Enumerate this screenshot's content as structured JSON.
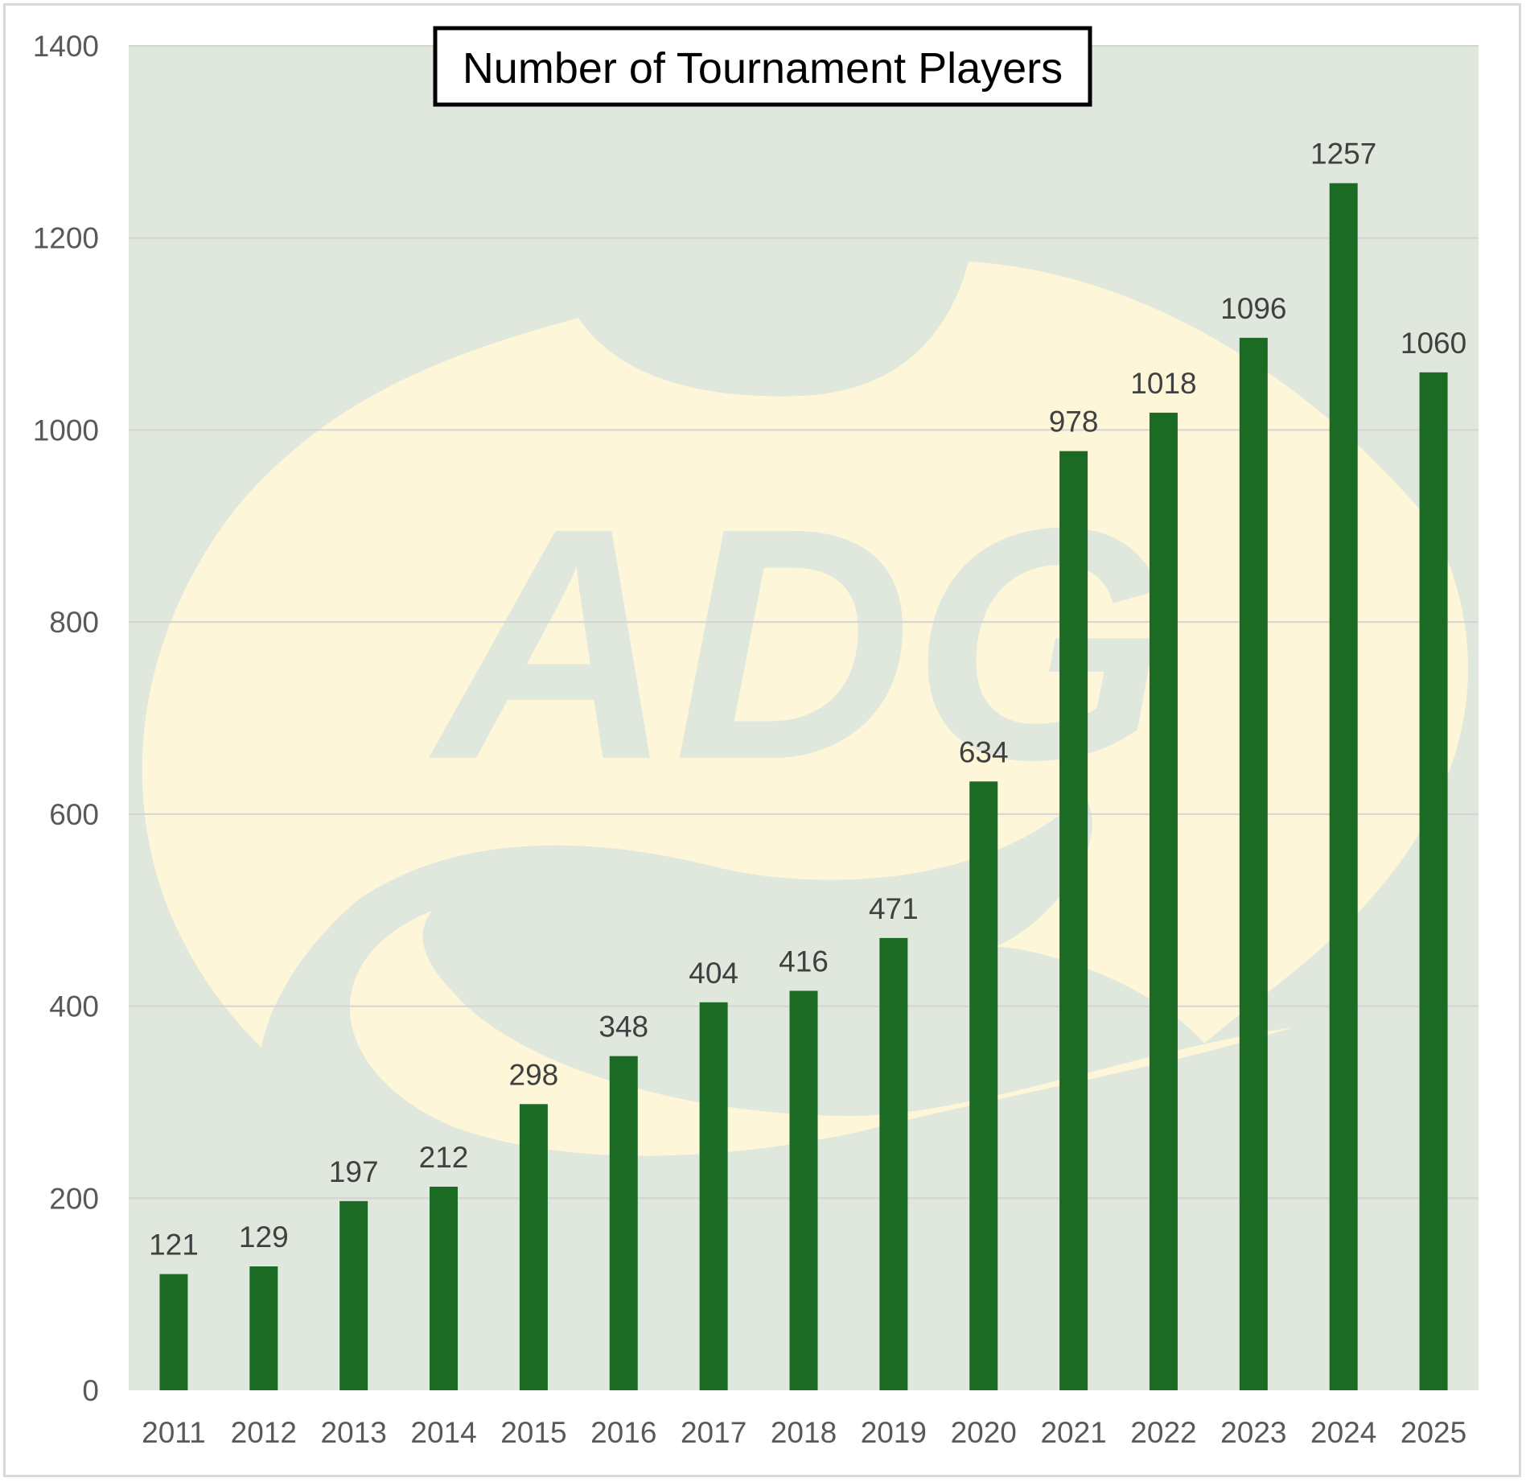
{
  "chart_data": {
    "type": "bar",
    "title": "Number of Tournament Players",
    "xlabel": "",
    "ylabel": "",
    "categories": [
      "2011",
      "2012",
      "2013",
      "2014",
      "2015",
      "2016",
      "2017",
      "2018",
      "2019",
      "2020",
      "2021",
      "2022",
      "2023",
      "2024",
      "2025"
    ],
    "values": [
      121,
      129,
      197,
      212,
      298,
      348,
      404,
      416,
      471,
      634,
      978,
      1018,
      1096,
      1257,
      1060
    ],
    "ylim": [
      0,
      1400
    ],
    "yticks": [
      "0",
      "200",
      "400",
      "600",
      "800",
      "1000",
      "1200",
      "1400"
    ],
    "grid": true,
    "legend": "none",
    "data_labels": true,
    "watermark_text": "ADG",
    "colors": {
      "bar": "#1b6b25",
      "plot_background": "#e0e7dd",
      "watermark": "#fdf6d8",
      "gridline": "#d4d4d4"
    }
  }
}
